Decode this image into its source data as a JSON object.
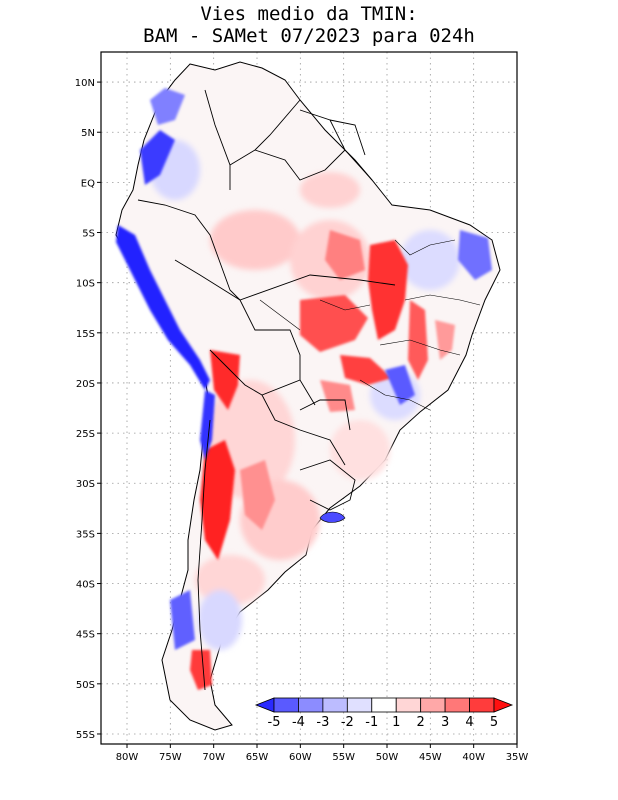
{
  "title": {
    "line1": "Vies medio da TMIN:",
    "line2": "BAM - SAMet 07/2023  para 024h"
  },
  "map": {
    "lon_range": [
      -83,
      -35
    ],
    "lat_range": [
      -56,
      13
    ],
    "lon_ticks": [
      "80W",
      "75W",
      "70W",
      "65W",
      "60W",
      "55W",
      "50W",
      "45W",
      "40W",
      "35W"
    ],
    "lat_ticks": [
      "10N",
      "5N",
      "EQ",
      "5S",
      "10S",
      "15S",
      "20S",
      "25S",
      "30S",
      "35S",
      "40S",
      "45S",
      "50S",
      "55S"
    ]
  },
  "colorbar": {
    "labels": [
      "-5",
      "-4",
      "-3",
      "-2",
      "-1",
      "1",
      "2",
      "3",
      "4",
      "5"
    ],
    "colors": [
      "#2a2aff",
      "#5a5aff",
      "#8c8cff",
      "#bcbcff",
      "#e0e0ff",
      "#ffffff",
      "#ffd6d6",
      "#ffa8a8",
      "#ff7878",
      "#ff3c3c",
      "#ff1010"
    ]
  },
  "colors": {
    "strong_red": "#ff2020",
    "mid_red": "#ff8a8a",
    "light_red": "#ffd2d2",
    "strong_blue": "#1a1aff",
    "mid_blue": "#8080ff",
    "light_blue": "#d2d2ff"
  }
}
